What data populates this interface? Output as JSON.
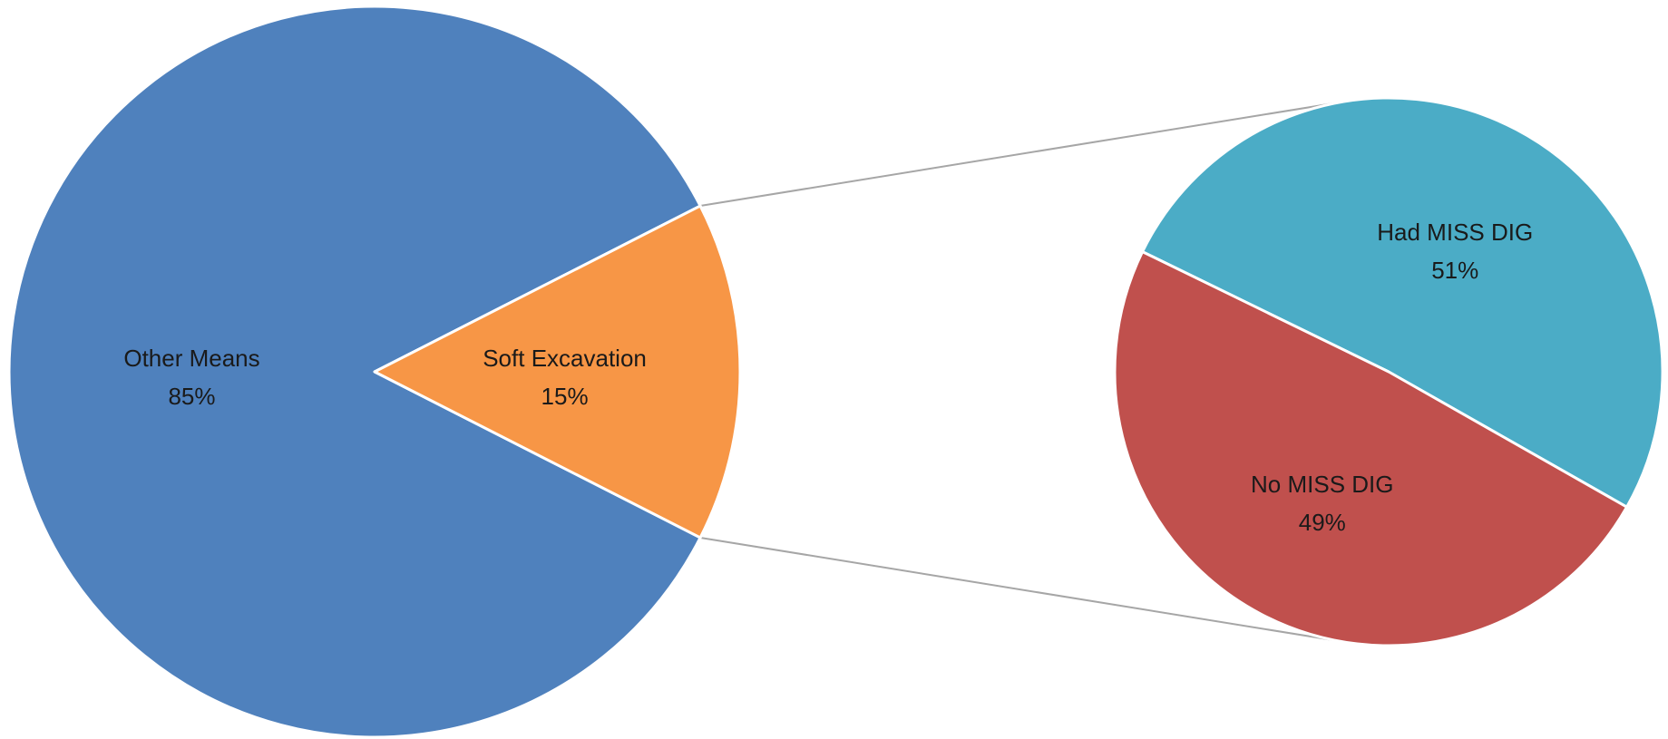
{
  "chart_data": [
    {
      "type": "pie",
      "title": "",
      "slices": [
        {
          "label": "Other Means",
          "value": 85,
          "value_label": "85%",
          "color": "#4F81BD"
        },
        {
          "label": "Soft Excavation",
          "value": 15,
          "value_label": "15%",
          "color": "#F79646"
        }
      ],
      "exploded_slice": "Soft Excavation"
    },
    {
      "type": "pie",
      "title": "",
      "breakdown_of": "Soft Excavation",
      "slices": [
        {
          "label": "Had MISS DIG",
          "value": 51,
          "value_label": "51%",
          "color": "#4BACC6"
        },
        {
          "label": "No MISS DIG",
          "value": 49,
          "value_label": "49%",
          "color": "#C0504D"
        }
      ]
    }
  ],
  "connector_color": "#A6A6A6",
  "slice_border_color": "#FFFFFF"
}
